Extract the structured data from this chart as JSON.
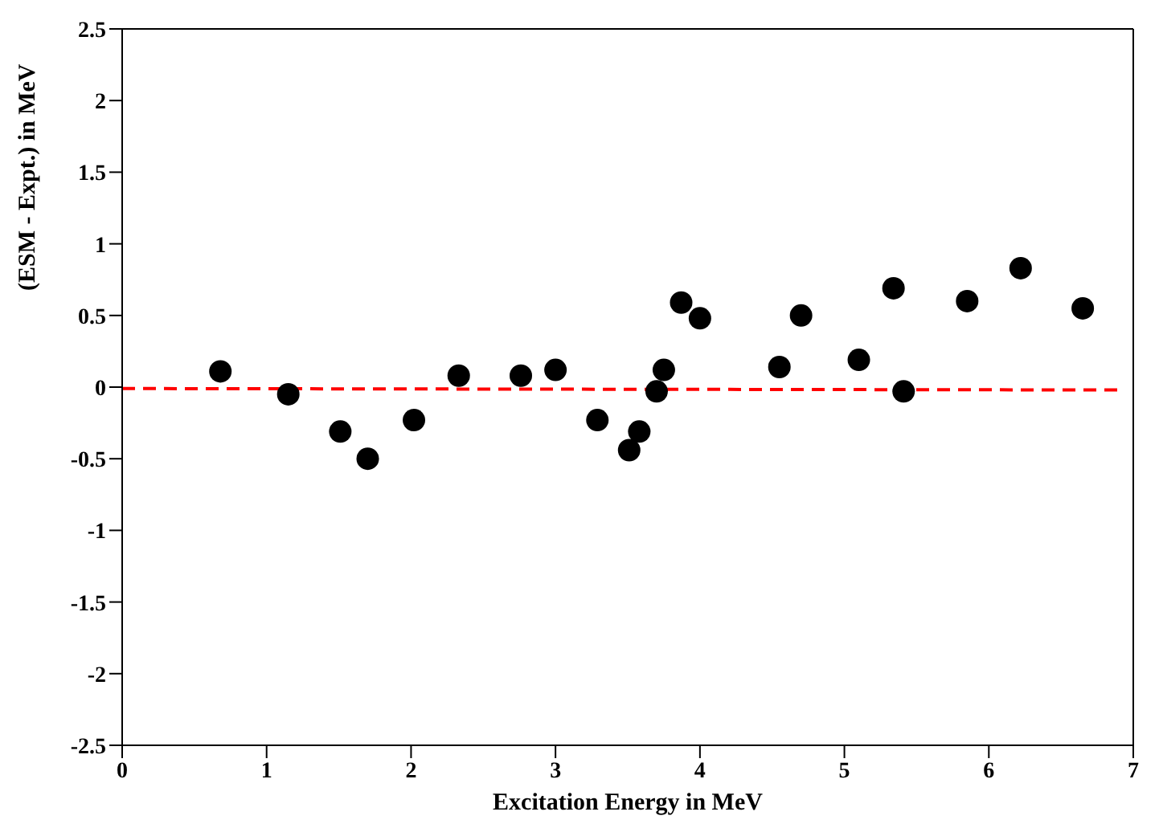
{
  "chart_data": {
    "type": "scatter",
    "xlabel": "Excitation Energy in MeV",
    "ylabel": "(ESM - Expt.) in MeV",
    "marker": "circle",
    "xlim": [
      0,
      7
    ],
    "xticks": [
      0,
      1,
      2,
      3,
      4,
      5,
      6,
      7
    ],
    "ylim": [
      -2.5,
      2.5
    ],
    "yticks": [
      -2.5,
      -2,
      -1.5,
      -1,
      -0.5,
      0,
      0.5,
      1,
      1.5,
      2,
      2.5
    ],
    "series": [
      {
        "color": "#000000",
        "x": [
          0.68,
          1.15,
          1.51,
          1.7,
          2.02,
          2.33,
          2.76,
          3.0,
          3.29,
          3.51,
          3.58,
          3.7,
          3.75,
          3.87,
          4.0,
          4.55,
          4.7,
          5.1,
          5.34,
          5.41,
          5.85,
          6.22,
          6.65
        ],
        "values": [
          0.11,
          -0.05,
          -0.31,
          -0.5,
          -0.23,
          0.08,
          0.08,
          0.12,
          -0.23,
          -0.44,
          -0.31,
          -0.03,
          0.12,
          0.59,
          0.48,
          0.14,
          0.5,
          0.19,
          0.69,
          -0.03,
          0.6,
          0.83,
          0.55
        ]
      },
      {
        "type": "line",
        "color": "#ff0000",
        "line_style": "dashed",
        "marker": "none",
        "x": [
          0,
          6.9
        ],
        "values": [
          -0.01,
          -0.02
        ]
      }
    ]
  }
}
